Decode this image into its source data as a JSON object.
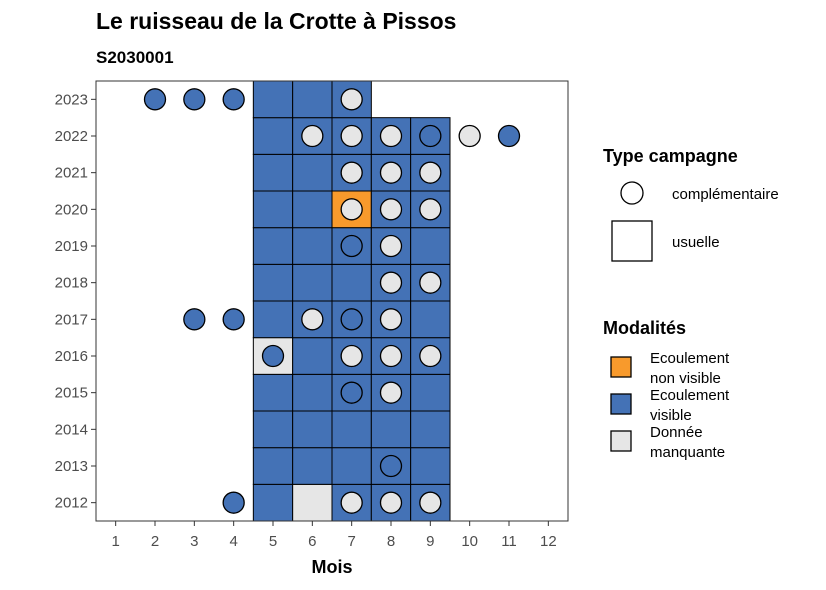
{
  "chart_data": {
    "type": "heatmap",
    "title": "Le ruisseau de la Crotte à Pissos",
    "subtitle": "S2030001",
    "xlabel": "Mois",
    "ylabel": "",
    "x_ticks": [
      1,
      2,
      3,
      4,
      5,
      6,
      7,
      8,
      9,
      10,
      11,
      12
    ],
    "y_ticks": [
      2012,
      2013,
      2014,
      2015,
      2016,
      2017,
      2018,
      2019,
      2020,
      2021,
      2022,
      2023
    ],
    "xlim": [
      0.5,
      12.5
    ],
    "ylim": [
      2011.5,
      2023.5
    ],
    "grid": false,
    "legend_position": "right",
    "modalities": [
      {
        "key": "nonvisible",
        "label": [
          "Ecoulement",
          "non visible"
        ],
        "color": "#F89A2C"
      },
      {
        "key": "visible",
        "label": [
          "Ecoulement",
          "visible"
        ],
        "color": "#4472B6"
      },
      {
        "key": "missing",
        "label": [
          "Donnée",
          "manquante"
        ],
        "color": "#E6E6E6"
      }
    ],
    "campaign_types": {
      "title": "Type campagne",
      "items": [
        {
          "key": "complementaire",
          "label": "complémentaire",
          "shape": "circle"
        },
        {
          "key": "usuelle",
          "label": "usuelle",
          "shape": "square"
        }
      ]
    },
    "modalities_title": "Modalités",
    "tiles": [
      {
        "year": 2012,
        "month": 5,
        "value": "visible"
      },
      {
        "year": 2012,
        "month": 6,
        "value": "missing"
      },
      {
        "year": 2012,
        "month": 7,
        "value": "visible"
      },
      {
        "year": 2012,
        "month": 8,
        "value": "visible"
      },
      {
        "year": 2012,
        "month": 9,
        "value": "visible"
      },
      {
        "year": 2013,
        "month": 5,
        "value": "visible"
      },
      {
        "year": 2013,
        "month": 6,
        "value": "visible"
      },
      {
        "year": 2013,
        "month": 7,
        "value": "visible"
      },
      {
        "year": 2013,
        "month": 8,
        "value": "visible"
      },
      {
        "year": 2013,
        "month": 9,
        "value": "visible"
      },
      {
        "year": 2014,
        "month": 5,
        "value": "visible"
      },
      {
        "year": 2014,
        "month": 6,
        "value": "visible"
      },
      {
        "year": 2014,
        "month": 7,
        "value": "visible"
      },
      {
        "year": 2014,
        "month": 8,
        "value": "visible"
      },
      {
        "year": 2014,
        "month": 9,
        "value": "visible"
      },
      {
        "year": 2015,
        "month": 5,
        "value": "visible"
      },
      {
        "year": 2015,
        "month": 6,
        "value": "visible"
      },
      {
        "year": 2015,
        "month": 7,
        "value": "visible"
      },
      {
        "year": 2015,
        "month": 8,
        "value": "visible"
      },
      {
        "year": 2015,
        "month": 9,
        "value": "visible"
      },
      {
        "year": 2016,
        "month": 5,
        "value": "missing"
      },
      {
        "year": 2016,
        "month": 6,
        "value": "visible"
      },
      {
        "year": 2016,
        "month": 7,
        "value": "visible"
      },
      {
        "year": 2016,
        "month": 8,
        "value": "visible"
      },
      {
        "year": 2016,
        "month": 9,
        "value": "visible"
      },
      {
        "year": 2017,
        "month": 5,
        "value": "visible"
      },
      {
        "year": 2017,
        "month": 6,
        "value": "visible"
      },
      {
        "year": 2017,
        "month": 7,
        "value": "visible"
      },
      {
        "year": 2017,
        "month": 8,
        "value": "visible"
      },
      {
        "year": 2017,
        "month": 9,
        "value": "visible"
      },
      {
        "year": 2018,
        "month": 5,
        "value": "visible"
      },
      {
        "year": 2018,
        "month": 6,
        "value": "visible"
      },
      {
        "year": 2018,
        "month": 7,
        "value": "visible"
      },
      {
        "year": 2018,
        "month": 8,
        "value": "visible"
      },
      {
        "year": 2018,
        "month": 9,
        "value": "visible"
      },
      {
        "year": 2019,
        "month": 5,
        "value": "visible"
      },
      {
        "year": 2019,
        "month": 6,
        "value": "visible"
      },
      {
        "year": 2019,
        "month": 7,
        "value": "visible"
      },
      {
        "year": 2019,
        "month": 8,
        "value": "visible"
      },
      {
        "year": 2019,
        "month": 9,
        "value": "visible"
      },
      {
        "year": 2020,
        "month": 5,
        "value": "visible"
      },
      {
        "year": 2020,
        "month": 6,
        "value": "visible"
      },
      {
        "year": 2020,
        "month": 7,
        "value": "nonvisible"
      },
      {
        "year": 2020,
        "month": 8,
        "value": "visible"
      },
      {
        "year": 2020,
        "month": 9,
        "value": "visible"
      },
      {
        "year": 2021,
        "month": 5,
        "value": "visible"
      },
      {
        "year": 2021,
        "month": 6,
        "value": "visible"
      },
      {
        "year": 2021,
        "month": 7,
        "value": "visible"
      },
      {
        "year": 2021,
        "month": 8,
        "value": "visible"
      },
      {
        "year": 2021,
        "month": 9,
        "value": "visible"
      },
      {
        "year": 2022,
        "month": 5,
        "value": "visible"
      },
      {
        "year": 2022,
        "month": 6,
        "value": "visible"
      },
      {
        "year": 2022,
        "month": 7,
        "value": "visible"
      },
      {
        "year": 2022,
        "month": 8,
        "value": "visible"
      },
      {
        "year": 2022,
        "month": 9,
        "value": "visible"
      },
      {
        "year": 2023,
        "month": 5,
        "value": "visible"
      },
      {
        "year": 2023,
        "month": 6,
        "value": "visible"
      },
      {
        "year": 2023,
        "month": 7,
        "value": "visible"
      }
    ],
    "points": [
      {
        "year": 2023,
        "month": 2,
        "value": "visible"
      },
      {
        "year": 2023,
        "month": 3,
        "value": "visible"
      },
      {
        "year": 2023,
        "month": 4,
        "value": "visible"
      },
      {
        "year": 2023,
        "month": 7,
        "value": "missing"
      },
      {
        "year": 2022,
        "month": 6,
        "value": "missing"
      },
      {
        "year": 2022,
        "month": 7,
        "value": "missing"
      },
      {
        "year": 2022,
        "month": 8,
        "value": "missing"
      },
      {
        "year": 2022,
        "month": 9,
        "value": "visible"
      },
      {
        "year": 2022,
        "month": 10,
        "value": "missing"
      },
      {
        "year": 2022,
        "month": 11,
        "value": "visible"
      },
      {
        "year": 2021,
        "month": 7,
        "value": "missing"
      },
      {
        "year": 2021,
        "month": 8,
        "value": "missing"
      },
      {
        "year": 2021,
        "month": 9,
        "value": "missing"
      },
      {
        "year": 2020,
        "month": 7,
        "value": "missing"
      },
      {
        "year": 2020,
        "month": 8,
        "value": "missing"
      },
      {
        "year": 2020,
        "month": 9,
        "value": "missing"
      },
      {
        "year": 2019,
        "month": 7,
        "value": "visible"
      },
      {
        "year": 2019,
        "month": 8,
        "value": "missing"
      },
      {
        "year": 2018,
        "month": 8,
        "value": "missing"
      },
      {
        "year": 2018,
        "month": 9,
        "value": "missing"
      },
      {
        "year": 2017,
        "month": 3,
        "value": "visible"
      },
      {
        "year": 2017,
        "month": 4,
        "value": "visible"
      },
      {
        "year": 2017,
        "month": 6,
        "value": "missing"
      },
      {
        "year": 2017,
        "month": 7,
        "value": "visible"
      },
      {
        "year": 2017,
        "month": 8,
        "value": "missing"
      },
      {
        "year": 2016,
        "month": 5,
        "value": "visible"
      },
      {
        "year": 2016,
        "month": 7,
        "value": "missing"
      },
      {
        "year": 2016,
        "month": 8,
        "value": "missing"
      },
      {
        "year": 2016,
        "month": 9,
        "value": "missing"
      },
      {
        "year": 2015,
        "month": 7,
        "value": "visible"
      },
      {
        "year": 2015,
        "month": 8,
        "value": "missing"
      },
      {
        "year": 2013,
        "month": 8,
        "value": "visible"
      },
      {
        "year": 2012,
        "month": 4,
        "value": "visible"
      },
      {
        "year": 2012,
        "month": 7,
        "value": "missing"
      },
      {
        "year": 2012,
        "month": 8,
        "value": "missing"
      },
      {
        "year": 2012,
        "month": 9,
        "value": "missing"
      }
    ]
  }
}
